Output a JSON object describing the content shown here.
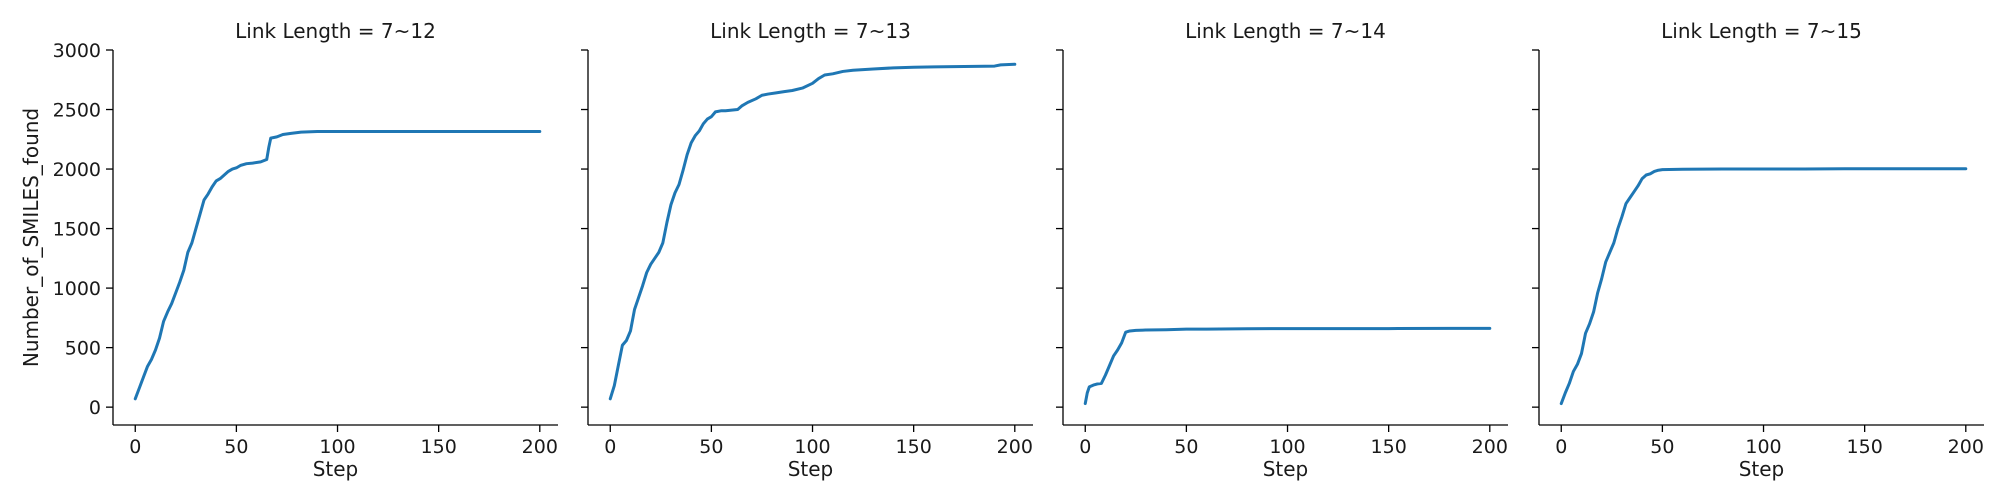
{
  "chart_data": [
    {
      "type": "line",
      "title": "Link Length = 7~12",
      "xlabel": "Step",
      "ylabel": "Number_of_SMILES_found",
      "xlim": [
        -11,
        209
      ],
      "ylim": [
        -150,
        3000
      ],
      "x_ticks": [
        0,
        50,
        100,
        150,
        200
      ],
      "y_ticks": [
        0,
        500,
        1000,
        1500,
        2000,
        2500,
        3000
      ],
      "grid": false,
      "line_color": "#1f77b4",
      "series": [
        {
          "x": [
            0,
            2,
            4,
            6,
            8,
            10,
            12,
            14,
            16,
            18,
            20,
            22,
            24,
            26,
            28,
            30,
            32,
            34,
            36,
            38,
            40,
            42,
            44,
            46,
            48,
            50,
            52,
            55,
            58,
            62,
            65,
            66,
            67,
            70,
            73,
            77,
            82,
            90,
            100,
            120,
            140,
            160,
            180,
            200
          ],
          "values": [
            70,
            160,
            250,
            340,
            400,
            480,
            580,
            720,
            800,
            870,
            960,
            1050,
            1150,
            1300,
            1380,
            1500,
            1620,
            1740,
            1790,
            1850,
            1900,
            1920,
            1950,
            1980,
            2000,
            2010,
            2030,
            2045,
            2050,
            2060,
            2080,
            2180,
            2260,
            2270,
            2290,
            2300,
            2310,
            2315,
            2315,
            2315,
            2315,
            2315,
            2315,
            2315
          ]
        }
      ]
    },
    {
      "type": "line",
      "title": "Link Length = 7~13",
      "xlabel": "Step",
      "ylabel": "",
      "xlim": [
        -11,
        209
      ],
      "ylim": [
        -150,
        3000
      ],
      "x_ticks": [
        0,
        50,
        100,
        150,
        200
      ],
      "y_ticks": [
        0,
        500,
        1000,
        1500,
        2000,
        2500,
        3000
      ],
      "grid": false,
      "line_color": "#1f77b4",
      "series": [
        {
          "x": [
            0,
            2,
            4,
            6,
            8,
            10,
            12,
            14,
            16,
            18,
            20,
            22,
            24,
            26,
            28,
            30,
            32,
            34,
            36,
            38,
            40,
            42,
            44,
            46,
            48,
            50,
            52,
            55,
            57,
            60,
            63,
            65,
            68,
            72,
            75,
            78,
            82,
            86,
            90,
            95,
            100,
            103,
            106,
            110,
            115,
            120,
            130,
            140,
            150,
            160,
            170,
            180,
            190,
            193,
            200
          ],
          "values": [
            70,
            180,
            350,
            520,
            560,
            640,
            820,
            920,
            1020,
            1130,
            1200,
            1250,
            1300,
            1380,
            1550,
            1700,
            1800,
            1870,
            1990,
            2120,
            2220,
            2280,
            2320,
            2380,
            2420,
            2440,
            2480,
            2490,
            2490,
            2495,
            2500,
            2530,
            2560,
            2590,
            2620,
            2630,
            2640,
            2650,
            2660,
            2680,
            2720,
            2760,
            2790,
            2800,
            2820,
            2830,
            2840,
            2850,
            2855,
            2858,
            2860,
            2862,
            2865,
            2875,
            2880
          ]
        }
      ]
    },
    {
      "type": "line",
      "title": "Link Length = 7~14",
      "xlabel": "Step",
      "ylabel": "",
      "xlim": [
        -11,
        209
      ],
      "ylim": [
        -150,
        3000
      ],
      "x_ticks": [
        0,
        50,
        100,
        150,
        200
      ],
      "y_ticks": [
        0,
        500,
        1000,
        1500,
        2000,
        2500,
        3000
      ],
      "grid": false,
      "line_color": "#1f77b4",
      "series": [
        {
          "x": [
            0,
            1,
            2,
            4,
            6,
            8,
            10,
            12,
            14,
            16,
            18,
            20,
            22,
            25,
            30,
            40,
            50,
            60,
            80,
            100,
            120,
            150,
            180,
            200
          ],
          "values": [
            30,
            120,
            170,
            185,
            195,
            200,
            270,
            350,
            430,
            480,
            540,
            630,
            640,
            645,
            648,
            650,
            655,
            655,
            658,
            660,
            660,
            660,
            662,
            662
          ]
        }
      ]
    },
    {
      "type": "line",
      "title": "Link Length = 7~15",
      "xlabel": "Step",
      "ylabel": "",
      "xlim": [
        -11,
        209
      ],
      "ylim": [
        -150,
        3000
      ],
      "x_ticks": [
        0,
        50,
        100,
        150,
        200
      ],
      "y_ticks": [
        0,
        500,
        1000,
        1500,
        2000,
        2500,
        3000
      ],
      "grid": false,
      "line_color": "#1f77b4",
      "series": [
        {
          "x": [
            0,
            2,
            4,
            6,
            8,
            10,
            12,
            14,
            16,
            18,
            20,
            22,
            24,
            26,
            28,
            30,
            32,
            34,
            36,
            38,
            40,
            42,
            44,
            46,
            48,
            50,
            60,
            80,
            100,
            120,
            140,
            160,
            180,
            200
          ],
          "values": [
            30,
            120,
            200,
            300,
            360,
            450,
            620,
            700,
            800,
            960,
            1080,
            1220,
            1300,
            1380,
            1500,
            1600,
            1710,
            1760,
            1810,
            1860,
            1920,
            1950,
            1960,
            1980,
            1990,
            1995,
            1998,
            2000,
            2000,
            2000,
            2002,
            2002,
            2002,
            2002
          ]
        }
      ]
    }
  ]
}
